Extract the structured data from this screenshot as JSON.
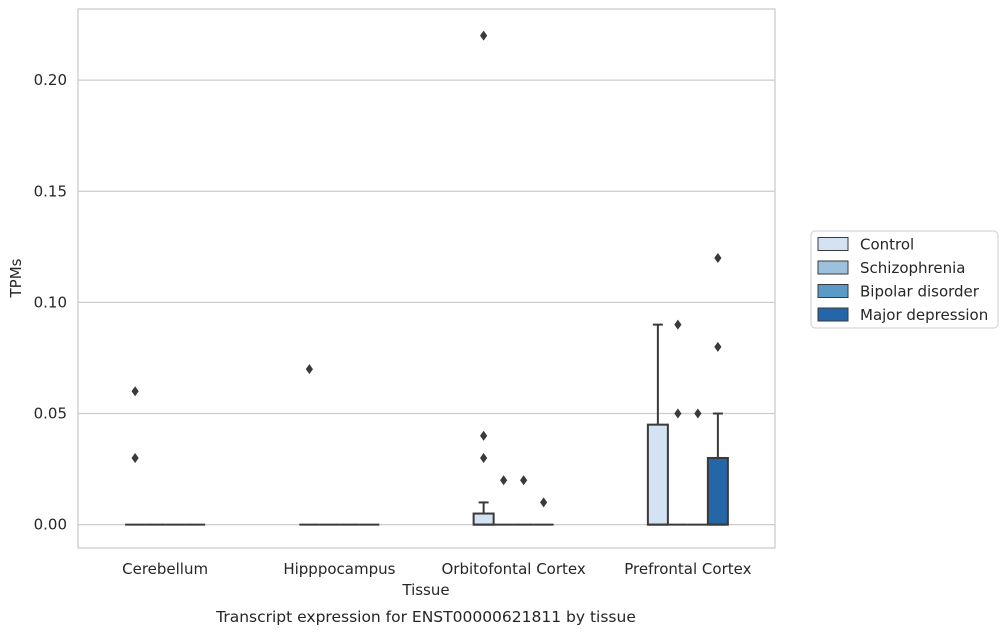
{
  "chart_data": {
    "type": "box",
    "xlabel": "Tissue",
    "ylabel": "TPMs",
    "caption": "Transcript expression for ENST00000621811 by tissue",
    "ylim": [
      -0.0105,
      0.232
    ],
    "yticks": [
      {
        "value": 0.0,
        "label": "0.00"
      },
      {
        "value": 0.05,
        "label": "0.05"
      },
      {
        "value": 0.1,
        "label": "0.10"
      },
      {
        "value": 0.15,
        "label": "0.15"
      },
      {
        "value": 0.2,
        "label": "0.20"
      }
    ],
    "grid": "horizontal",
    "legend_position": "right",
    "categories": [
      "Cerebellum",
      "Hipppocampus",
      "Orbitofontal Cortex",
      "Prefrontal Cortex"
    ],
    "series": [
      {
        "name": "Control",
        "color": "#d3e3f3",
        "boxes": [
          {
            "q1": 0,
            "median": 0,
            "q3": 0,
            "whisker_low": 0,
            "whisker_high": 0,
            "outliers": [
              0.03,
              0.06
            ]
          },
          {
            "q1": 0,
            "median": 0,
            "q3": 0,
            "whisker_low": 0,
            "whisker_high": 0,
            "outliers": [
              0.07
            ]
          },
          {
            "q1": 0,
            "median": 0,
            "q3": 0.005,
            "whisker_low": 0,
            "whisker_high": 0.01,
            "outliers": [
              0.03,
              0.04,
              0.22
            ]
          },
          {
            "q1": 0,
            "median": 0,
            "q3": 0.045,
            "whisker_low": 0,
            "whisker_high": 0.09,
            "outliers": []
          }
        ]
      },
      {
        "name": "Schizophrenia",
        "color": "#9dc1dd",
        "boxes": [
          {
            "q1": 0,
            "median": 0,
            "q3": 0,
            "whisker_low": 0,
            "whisker_high": 0,
            "outliers": []
          },
          {
            "q1": 0,
            "median": 0,
            "q3": 0,
            "whisker_low": 0,
            "whisker_high": 0,
            "outliers": []
          },
          {
            "q1": 0,
            "median": 0,
            "q3": 0,
            "whisker_low": 0,
            "whisker_high": 0,
            "outliers": [
              0.02
            ]
          },
          {
            "q1": 0,
            "median": 0,
            "q3": 0,
            "whisker_low": 0,
            "whisker_high": 0,
            "outliers": [
              0.05,
              0.09
            ]
          }
        ]
      },
      {
        "name": "Bipolar disorder",
        "color": "#5a9ac6",
        "boxes": [
          {
            "q1": 0,
            "median": 0,
            "q3": 0,
            "whisker_low": 0,
            "whisker_high": 0,
            "outliers": []
          },
          {
            "q1": 0,
            "median": 0,
            "q3": 0,
            "whisker_low": 0,
            "whisker_high": 0,
            "outliers": []
          },
          {
            "q1": 0,
            "median": 0,
            "q3": 0,
            "whisker_low": 0,
            "whisker_high": 0,
            "outliers": [
              0.02
            ]
          },
          {
            "q1": 0,
            "median": 0,
            "q3": 0,
            "whisker_low": 0,
            "whisker_high": 0,
            "outliers": [
              0.05
            ]
          }
        ]
      },
      {
        "name": "Major depression",
        "color": "#2566a8",
        "boxes": [
          {
            "q1": 0,
            "median": 0,
            "q3": 0,
            "whisker_low": 0,
            "whisker_high": 0,
            "outliers": []
          },
          {
            "q1": 0,
            "median": 0,
            "q3": 0,
            "whisker_low": 0,
            "whisker_high": 0,
            "outliers": []
          },
          {
            "q1": 0,
            "median": 0,
            "q3": 0,
            "whisker_low": 0,
            "whisker_high": 0,
            "outliers": [
              0.01
            ]
          },
          {
            "q1": 0,
            "median": 0,
            "q3": 0.03,
            "whisker_low": 0,
            "whisker_high": 0.05,
            "outliers": [
              0.08,
              0.12
            ]
          }
        ]
      }
    ]
  }
}
